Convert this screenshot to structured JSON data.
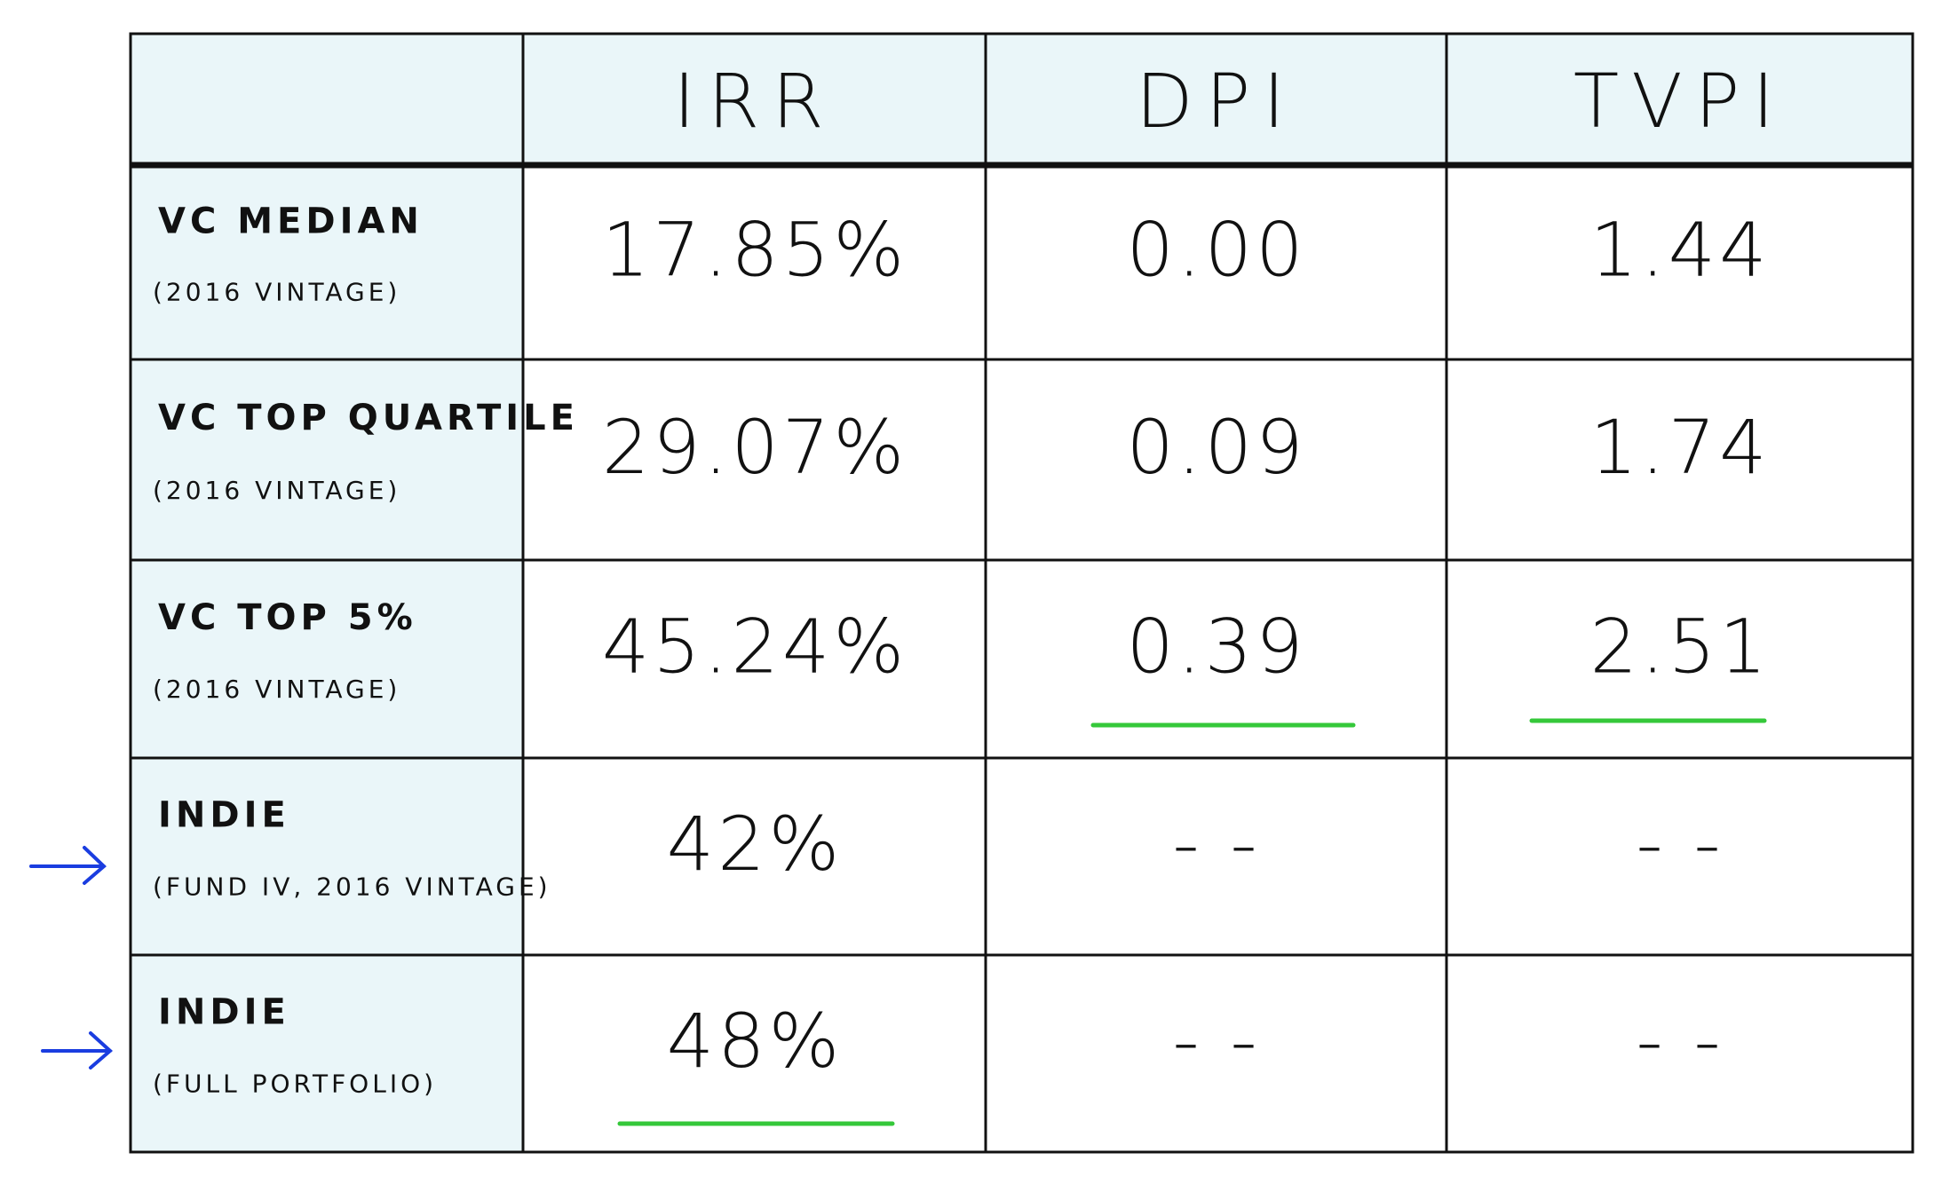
{
  "table": {
    "columns": [
      "IRR",
      "DPI",
      "TVPI"
    ],
    "rows": [
      {
        "label": "VC MEDIAN",
        "sublabel": "(2016 VINTAGE)",
        "values": [
          "17.85%",
          "0.00",
          "1.44"
        ]
      },
      {
        "label": "VC TOP QUARTILE",
        "sublabel": "(2016 VINTAGE)",
        "values": [
          "29.07%",
          "0.09",
          "1.74"
        ]
      },
      {
        "label": "VC TOP 5%",
        "sublabel": "(2016 VINTAGE)",
        "values": [
          "45.24%",
          "0.39",
          "2.51"
        ]
      },
      {
        "label": "INDIE",
        "sublabel": "(FUND IV, 2016 VINTAGE)",
        "values": [
          "42%",
          "- -",
          "- -"
        ]
      },
      {
        "label": "INDIE",
        "sublabel": "(FULL PORTFOLIO)",
        "values": [
          "48%",
          "- -",
          "- -"
        ]
      }
    ]
  }
}
